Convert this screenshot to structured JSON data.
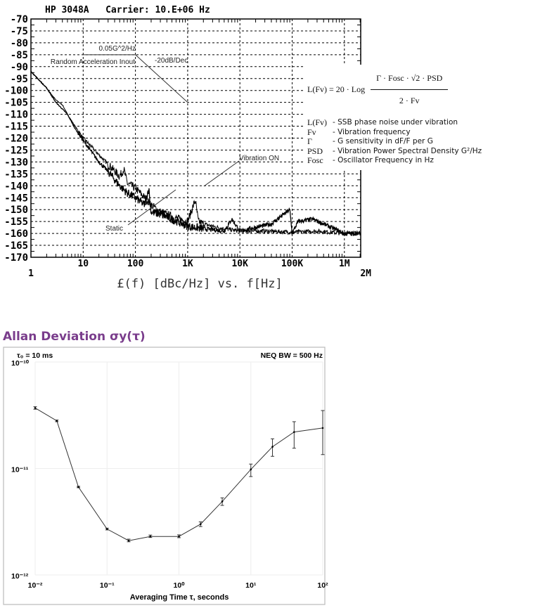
{
  "chart_data": [
    {
      "type": "line",
      "title": "HP 3048A   Carrier: 10.E+06 Hz",
      "xlabel": "£(f) [dBc/Hz] vs. f[Hz]",
      "ylabel": "",
      "x_scale": "log",
      "xlim": [
        1,
        2000000
      ],
      "ylim": [
        -170,
        -70
      ],
      "grid": true,
      "x_ticks": [
        {
          "v": 1,
          "label": "1"
        },
        {
          "v": 10,
          "label": "10"
        },
        {
          "v": 100,
          "label": "100"
        },
        {
          "v": 1000,
          "label": "1K"
        },
        {
          "v": 10000,
          "label": "10K"
        },
        {
          "v": 100000,
          "label": "100K"
        },
        {
          "v": 1000000,
          "label": "1M"
        },
        {
          "v": 2000000,
          "label": "2M"
        }
      ],
      "y_ticks": [
        -70,
        -75,
        -80,
        -85,
        -90,
        -95,
        -100,
        -105,
        -110,
        -115,
        -120,
        -125,
        -130,
        -135,
        -140,
        -145,
        -150,
        -155,
        -160,
        -165,
        -170
      ],
      "series": [
        {
          "name": "Vibration ON",
          "points": [
            [
              1,
              -92
            ],
            [
              2,
              -99
            ],
            [
              3,
              -104
            ],
            [
              4,
              -106
            ],
            [
              5,
              -110
            ],
            [
              7,
              -115
            ],
            [
              10,
              -120
            ],
            [
              15,
              -124
            ],
            [
              20,
              -127
            ],
            [
              30,
              -131
            ],
            [
              50,
              -136
            ],
            [
              60,
              -133
            ],
            [
              70,
              -139
            ],
            [
              100,
              -141
            ],
            [
              150,
              -145
            ],
            [
              200,
              -148
            ],
            [
              300,
              -151
            ],
            [
              500,
              -153
            ],
            [
              1000,
              -155
            ],
            [
              1400,
              -146
            ],
            [
              1600,
              -155
            ],
            [
              2000,
              -156
            ],
            [
              3000,
              -157
            ],
            [
              5000,
              -158
            ],
            [
              10000,
              -159
            ],
            [
              30000,
              -159
            ],
            [
              100000,
              -159.5
            ],
            [
              300000,
              -159
            ],
            [
              1000000,
              -160
            ],
            [
              2000000,
              -160
            ]
          ]
        },
        {
          "name": "Static",
          "points": [
            [
              1,
              -92
            ],
            [
              2,
              -99
            ],
            [
              3,
              -105
            ],
            [
              5,
              -110
            ],
            [
              7,
              -116
            ],
            [
              10,
              -121
            ],
            [
              20,
              -130
            ],
            [
              30,
              -134
            ],
            [
              50,
              -140
            ],
            [
              70,
              -143
            ],
            [
              100,
              -145
            ],
            [
              150,
              -148
            ],
            [
              180,
              -141
            ],
            [
              200,
              -151
            ],
            [
              300,
              -152
            ],
            [
              500,
              -154
            ],
            [
              1000,
              -157
            ],
            [
              2000,
              -158
            ],
            [
              5000,
              -159
            ],
            [
              7000,
              -154
            ],
            [
              10000,
              -159
            ],
            [
              40000,
              -156
            ],
            [
              90000,
              -150
            ],
            [
              100000,
              -160
            ],
            [
              130000,
              -155
            ],
            [
              250000,
              -154
            ],
            [
              1000000,
              -160
            ],
            [
              2000000,
              -160
            ]
          ]
        }
      ],
      "reference_line": {
        "points": [
          [
            10,
            -85
          ],
          [
            100,
            -85
          ],
          [
            1000,
            -105
          ]
        ]
      },
      "annotations": {
        "psd": "0.05G^2/Hz",
        "input": "Random Acceleration Inout",
        "slope": "-20dB/Dec",
        "vibration_on": "Vibration ON",
        "static": "Static"
      },
      "formula": {
        "lhs": "L(Fv) = 20 · Log",
        "numerator": "Γ · Fosc · √2 · PSD",
        "denominator": "2 · Fv",
        "legend": [
          {
            "symbol": "L(Fv)",
            "desc": "- SSB phase noise under vibration"
          },
          {
            "symbol": "Fv",
            "desc": "- Vibration frequency"
          },
          {
            "symbol": "Γ",
            "desc": "- G sensitivity in dF/F per G"
          },
          {
            "symbol": "PSD",
            "desc": "- Vibration Power Spectral Density G²/Hz"
          },
          {
            "symbol": "Fosc",
            "desc": "- Oscillator Frequency in Hz"
          }
        ]
      }
    },
    {
      "type": "line",
      "title": "Allan Deviation σy(τ)",
      "xlabel": "Averaging Time τ, seconds",
      "ylabel": "",
      "x_scale": "log",
      "y_scale": "log",
      "xlim": [
        0.01,
        100
      ],
      "ylim": [
        1e-12,
        1e-10
      ],
      "grid": true,
      "x_ticks": [
        {
          "v": 0.01,
          "label": "10⁻²"
        },
        {
          "v": 0.1,
          "label": "10⁻¹"
        },
        {
          "v": 1,
          "label": "10⁰"
        },
        {
          "v": 10,
          "label": "10¹"
        },
        {
          "v": 100,
          "label": "10²"
        }
      ],
      "y_ticks": [
        {
          "v": 1e-10,
          "label": "10⁻¹⁰"
        },
        {
          "v": 1e-11,
          "label": "10⁻¹¹"
        },
        {
          "v": 1e-12,
          "label": "10⁻¹²"
        }
      ],
      "annotations": {
        "tau0": "τ₀ = 10 ms",
        "bw": "NEQ BW = 500 Hz"
      },
      "points": [
        {
          "x": 0.01,
          "y": 3.7e-11,
          "lo": 3.6e-11,
          "hi": 3.8e-11
        },
        {
          "x": 0.02,
          "y": 2.8e-11,
          "lo": 2.75e-11,
          "hi": 2.85e-11
        },
        {
          "x": 0.04,
          "y": 6.7e-12,
          "lo": 6.6e-12,
          "hi": 6.8e-12
        },
        {
          "x": 0.1,
          "y": 2.7e-12,
          "lo": 2.65e-12,
          "hi": 2.75e-12
        },
        {
          "x": 0.2,
          "y": 2.1e-12,
          "lo": 2.05e-12,
          "hi": 2.17e-12
        },
        {
          "x": 0.4,
          "y": 2.3e-12,
          "lo": 2.25e-12,
          "hi": 2.37e-12
        },
        {
          "x": 1,
          "y": 2.3e-12,
          "lo": 2.24e-12,
          "hi": 2.38e-12
        },
        {
          "x": 2,
          "y": 3e-12,
          "lo": 2.85e-12,
          "hi": 3.15e-12
        },
        {
          "x": 4,
          "y": 4.9e-12,
          "lo": 4.5e-12,
          "hi": 5.3e-12
        },
        {
          "x": 10,
          "y": 9.8e-12,
          "lo": 8.4e-12,
          "hi": 1.1e-11
        },
        {
          "x": 20,
          "y": 1.6e-11,
          "lo": 1.3e-11,
          "hi": 1.9e-11
        },
        {
          "x": 40,
          "y": 2.2e-11,
          "lo": 1.55e-11,
          "hi": 2.75e-11
        },
        {
          "x": 100,
          "y": 2.4e-11,
          "lo": 1.35e-11,
          "hi": 3.5e-11
        }
      ]
    }
  ]
}
